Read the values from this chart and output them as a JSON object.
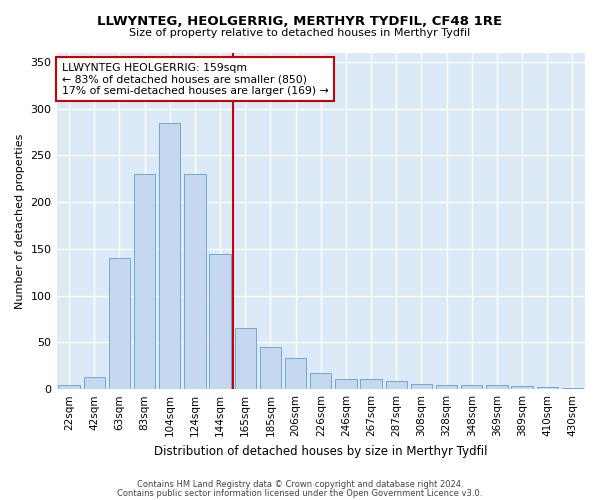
{
  "title": "LLWYNTEG, HEOLGERRIG, MERTHYR TYDFIL, CF48 1RE",
  "subtitle": "Size of property relative to detached houses in Merthyr Tydfil",
  "xlabel": "Distribution of detached houses by size in Merthyr Tydfil",
  "ylabel": "Number of detached properties",
  "bar_color": "#c5d8f0",
  "bar_edge_color": "#6aaad4",
  "background_color": "#dce9f7",
  "grid_color": "#ffffff",
  "categories": [
    "22sqm",
    "42sqm",
    "63sqm",
    "83sqm",
    "104sqm",
    "124sqm",
    "144sqm",
    "165sqm",
    "185sqm",
    "206sqm",
    "226sqm",
    "246sqm",
    "267sqm",
    "287sqm",
    "308sqm",
    "328sqm",
    "348sqm",
    "369sqm",
    "389sqm",
    "410sqm",
    "430sqm"
  ],
  "values": [
    5,
    13,
    140,
    230,
    285,
    230,
    145,
    65,
    45,
    33,
    17,
    11,
    11,
    9,
    6,
    5,
    4,
    4,
    3,
    2,
    1
  ],
  "ylim": [
    0,
    360
  ],
  "yticks": [
    0,
    50,
    100,
    150,
    200,
    250,
    300,
    350
  ],
  "vline_bin_index": 7,
  "annotation_title": "LLWYNTEG HEOLGERRIG: 159sqm",
  "annotation_line1": "← 83% of detached houses are smaller (850)",
  "annotation_line2": "17% of semi-detached houses are larger (169) →",
  "vline_color": "#cc0000",
  "annotation_box_color": "#ffffff",
  "annotation_box_edge": "#cc0000",
  "footer1": "Contains HM Land Registry data © Crown copyright and database right 2024.",
  "footer2": "Contains public sector information licensed under the Open Government Licence v3.0."
}
